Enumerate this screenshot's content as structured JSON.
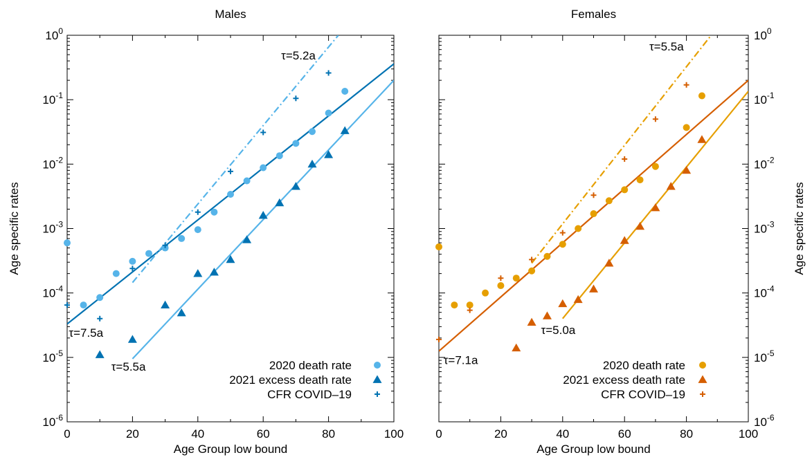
{
  "chart_data": [
    {
      "type": "scatter",
      "title": "Males",
      "xlabel": "Age Group low bound",
      "ylabel": "Age specific rates",
      "xlim": [
        0,
        100
      ],
      "ylim": [
        1e-06,
        1
      ],
      "yscale": "log",
      "x_ticks": [
        "0",
        "20",
        "40",
        "60",
        "80",
        "100"
      ],
      "y_ticks": [
        {
          "base": "10",
          "exp": "-6"
        },
        {
          "base": "10",
          "exp": "-5"
        },
        {
          "base": "10",
          "exp": "-4"
        },
        {
          "base": "10",
          "exp": "-3"
        },
        {
          "base": "10",
          "exp": "-2"
        },
        {
          "base": "10",
          "exp": "-1"
        },
        {
          "base": "10",
          "exp": "0"
        }
      ],
      "legend_position": "bottom-right",
      "series": [
        {
          "name": "2020 death rate",
          "marker": "circle",
          "color": "#56b4e9",
          "x": [
            0,
            5,
            10,
            15,
            20,
            25,
            30,
            35,
            40,
            45,
            50,
            55,
            60,
            65,
            70,
            75,
            80,
            85
          ],
          "y": [
            0.0006,
            6.5e-05,
            8.5e-05,
            0.0002,
            0.00031,
            0.00041,
            0.0005,
            0.0007,
            0.00096,
            0.0018,
            0.0034,
            0.0055,
            0.0088,
            0.0135,
            0.021,
            0.032,
            0.062,
            0.135
          ]
        },
        {
          "name": "2021 excess death rate",
          "marker": "triangle",
          "color": "#0072b2",
          "x": [
            10,
            20,
            30,
            35,
            40,
            45,
            50,
            55,
            60,
            65,
            70,
            75,
            80,
            85
          ],
          "y": [
            1.1e-05,
            1.9e-05,
            6.5e-05,
            4.9e-05,
            0.0002,
            0.00021,
            0.00033,
            0.00067,
            0.0016,
            0.0025,
            0.0045,
            0.01,
            0.014,
            0.033
          ]
        },
        {
          "name": "CFR COVID–19",
          "marker": "plus",
          "color": "#0072b2",
          "x": [
            0,
            10,
            20,
            30,
            40,
            50,
            60,
            70,
            80
          ],
          "y": [
            6.5e-05,
            4e-05,
            0.00024,
            0.00055,
            0.0018,
            0.0077,
            0.031,
            0.105,
            0.26
          ]
        }
      ],
      "fits": [
        {
          "style": "solid",
          "color": "#0072b2",
          "x": [
            0,
            100
          ],
          "y": [
            3.3e-05,
            0.36
          ]
        },
        {
          "style": "solid",
          "color": "#56b4e9",
          "x": [
            20,
            100
          ],
          "y": [
            9.5e-06,
            0.2
          ]
        },
        {
          "style": "dash-dot",
          "color": "#56b4e9",
          "x": [
            20,
            83
          ],
          "y": [
            0.000145,
            1.0
          ]
        }
      ],
      "annotations": [
        {
          "label": "τ=7.5a",
          "x": 0.5,
          "y": 2.1e-05
        },
        {
          "label": "τ=5.5a",
          "x": 13.5,
          "y": 6.2e-06
        },
        {
          "label": "τ=5.2a",
          "x": 65.5,
          "y": 0.42
        }
      ]
    },
    {
      "type": "scatter",
      "title": "Females",
      "xlabel": "Age Group low bound",
      "ylabel": "Age specific rates",
      "xlim": [
        0,
        100
      ],
      "ylim": [
        1e-06,
        1
      ],
      "yscale": "log",
      "x_ticks": [
        "0",
        "20",
        "40",
        "60",
        "80",
        "100"
      ],
      "y_ticks": [
        {
          "base": "10",
          "exp": "-6"
        },
        {
          "base": "10",
          "exp": "-5"
        },
        {
          "base": "10",
          "exp": "-4"
        },
        {
          "base": "10",
          "exp": "-3"
        },
        {
          "base": "10",
          "exp": "-2"
        },
        {
          "base": "10",
          "exp": "-1"
        },
        {
          "base": "10",
          "exp": "0"
        }
      ],
      "legend_position": "bottom-right",
      "series": [
        {
          "name": "2020 death rate",
          "marker": "circle",
          "color": "#e69f00",
          "x": [
            0,
            5,
            10,
            15,
            20,
            25,
            30,
            35,
            40,
            45,
            50,
            55,
            60,
            65,
            70,
            80,
            85
          ],
          "y": [
            0.00052,
            6.5e-05,
            6.5e-05,
            0.0001,
            0.00013,
            0.00017,
            0.00022,
            0.00037,
            0.00057,
            0.001,
            0.0017,
            0.0027,
            0.004,
            0.0057,
            0.0092,
            0.037,
            0.115
          ]
        },
        {
          "name": "2021 excess death rate",
          "marker": "triangle",
          "color": "#d55e00",
          "x": [
            25,
            30,
            35,
            40,
            45,
            50,
            55,
            60,
            65,
            70,
            75,
            80,
            85
          ],
          "y": [
            1.4e-05,
            3.5e-05,
            4.4e-05,
            6.8e-05,
            7.9e-05,
            0.000115,
            0.00029,
            0.00065,
            0.00108,
            0.0021,
            0.0045,
            0.008,
            0.024
          ]
        },
        {
          "name": "CFR COVID–19",
          "marker": "plus",
          "color": "#d55e00",
          "x": [
            0,
            10,
            20,
            30,
            40,
            50,
            60,
            70,
            80
          ],
          "y": [
            1.9e-05,
            5.4e-05,
            0.00017,
            0.00033,
            0.00086,
            0.0033,
            0.012,
            0.05,
            0.17
          ]
        }
      ],
      "fits": [
        {
          "style": "solid",
          "color": "#d55e00",
          "x": [
            0,
            100
          ],
          "y": [
            1.25e-05,
            0.2
          ]
        },
        {
          "style": "solid",
          "color": "#e69f00",
          "x": [
            40,
            100
          ],
          "y": [
            4e-05,
            0.135
          ]
        },
        {
          "style": "dash-dot",
          "color": "#e69f00",
          "x": [
            30,
            88
          ],
          "y": [
            0.00029,
            1.0
          ]
        }
      ],
      "annotations": [
        {
          "label": "τ=7.1a",
          "x": 1.5,
          "y": 7.9e-06
        },
        {
          "label": "τ=5.0a",
          "x": 33,
          "y": 2.3e-05
        },
        {
          "label": "τ=5.5a",
          "x": 68,
          "y": 0.58
        }
      ]
    }
  ]
}
